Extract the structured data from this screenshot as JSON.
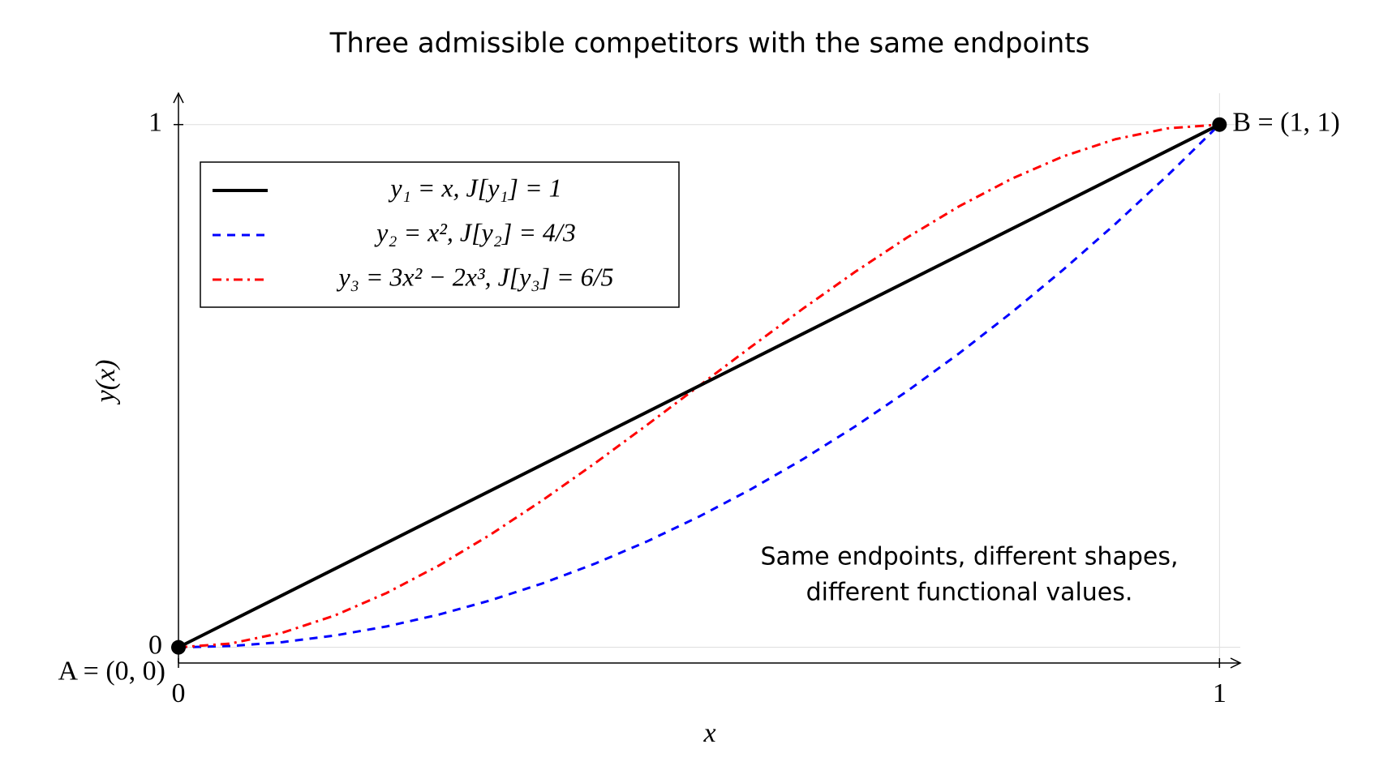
{
  "chart_data": {
    "type": "line",
    "title": "Three admissible competitors with the same endpoints",
    "xlabel": "x",
    "ylabel": "y(x)",
    "x": [
      0,
      0.05,
      0.1,
      0.15,
      0.2,
      0.25,
      0.3,
      0.35,
      0.4,
      0.45,
      0.5,
      0.55,
      0.6,
      0.65,
      0.7,
      0.75,
      0.8,
      0.85,
      0.9,
      0.95,
      1
    ],
    "series": [
      {
        "name": "y₁ = x,  J[y₁] = 1",
        "color": "#000000",
        "dash": "solid",
        "values": [
          0,
          0.05,
          0.1,
          0.15,
          0.2,
          0.25,
          0.3,
          0.35,
          0.4,
          0.45,
          0.5,
          0.55,
          0.6,
          0.65,
          0.7,
          0.75,
          0.8,
          0.85,
          0.9,
          0.95,
          1
        ]
      },
      {
        "name": "y₂ = x²,  J[y₂] = 4/3",
        "color": "#0000ff",
        "dash": "dashed",
        "values": [
          0,
          0.0025,
          0.01,
          0.0225,
          0.04,
          0.0625,
          0.09,
          0.1225,
          0.16,
          0.2025,
          0.25,
          0.3025,
          0.36,
          0.4225,
          0.49,
          0.5625,
          0.64,
          0.7225,
          0.81,
          0.9025,
          1
        ]
      },
      {
        "name": "y₃ = 3x² − 2x³,  J[y₃] = 6/5",
        "color": "#ff0000",
        "dash": "dashdot",
        "values": [
          0,
          0.00725,
          0.028,
          0.06075,
          0.104,
          0.15625,
          0.216,
          0.28175,
          0.352,
          0.42525,
          0.5,
          0.57475,
          0.648,
          0.71825,
          0.784,
          0.84375,
          0.896,
          0.93925,
          0.972,
          0.99275,
          1
        ]
      }
    ],
    "points": [
      {
        "label": "A = (0, 0)",
        "x": 0,
        "y": 0
      },
      {
        "label": "B = (1, 1)",
        "x": 1,
        "y": 1
      }
    ],
    "annotation": [
      "Same endpoints, different shapes,",
      "different functional values."
    ],
    "xlim": [
      0,
      1.02
    ],
    "ylim": [
      -0.03,
      1.06
    ],
    "xticks": [
      0,
      1
    ],
    "yticks": [
      0,
      1
    ],
    "grid": true,
    "legend": "upper left"
  }
}
